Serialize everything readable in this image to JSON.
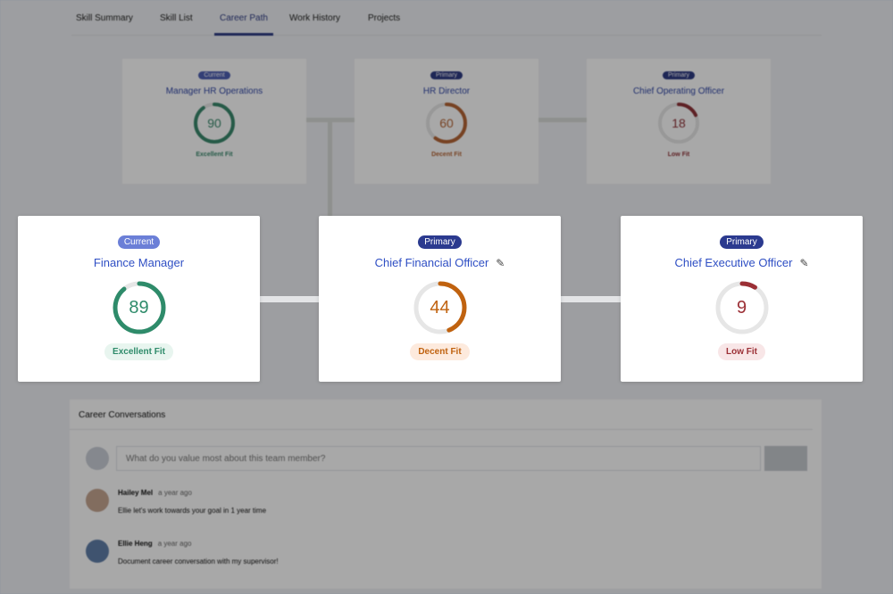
{
  "tabs": [
    {
      "label": "Skill Summary"
    },
    {
      "label": "Skill List"
    },
    {
      "label": "Career Path",
      "active": true
    },
    {
      "label": "Work History"
    },
    {
      "label": "Projects"
    }
  ],
  "background_path": [
    {
      "badge": "Current",
      "title": "Manager HR Operations",
      "score": 90,
      "fit": "Excellent Fit",
      "color": "#2e8b6a",
      "badge_color": "#4a5fc1"
    },
    {
      "badge": "Primary",
      "title": "HR Director",
      "score": 60,
      "fit": "Decent Fit",
      "color": "#c0622a",
      "badge_color": "#2b3a8f"
    },
    {
      "badge": "Primary",
      "title": "Chief Operating Officer",
      "score": 18,
      "fit": "Low Fit",
      "color": "#9b2f35",
      "badge_color": "#2b3a8f"
    }
  ],
  "foreground_path": [
    {
      "badge": "Current",
      "title": "Finance Manager",
      "score": 89,
      "fit": "Excellent Fit",
      "color": "#2e8b6a",
      "fit_bg": "#e8f5ef",
      "badge_color": "#6b7fd7",
      "editable": false
    },
    {
      "badge": "Primary",
      "title": "Chief Financial Officer",
      "score": 44,
      "fit": "Decent Fit",
      "color": "#c0620f",
      "fit_bg": "#fdeadd",
      "badge_color": "#2b3a8f",
      "editable": true
    },
    {
      "badge": "Primary",
      "title": "Chief Executive Officer",
      "score": 9,
      "fit": "Low Fit",
      "color": "#9b2f35",
      "fit_bg": "#f8e6e7",
      "badge_color": "#2b3a8f",
      "editable": true
    }
  ],
  "conversations": {
    "title": "Career Conversations",
    "placeholder": "What do you value most about this team member?",
    "messages": [
      {
        "name": "Hailey Mel",
        "time": "a year ago",
        "text": "Ellie let's work towards your goal in 1 year time"
      },
      {
        "name": "Ellie Heng",
        "time": "a year ago",
        "text": "Document career conversation with my supervisor!"
      }
    ]
  }
}
